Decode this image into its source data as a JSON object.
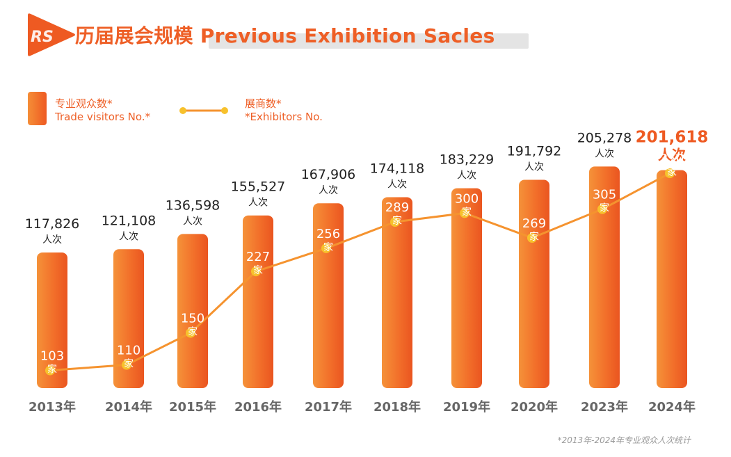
{
  "header": {
    "logo_text": "RS",
    "title": "历届展会规模 Previous Exhibition Sacles"
  },
  "legend": {
    "visitors_line1": "专业观众数*",
    "visitors_line2": "Trade visitors No.*",
    "exhibitors_line1": "展商数*",
    "exhibitors_line2": "*Exhibitors No."
  },
  "colors": {
    "accent": "#ee5a22",
    "bar_light": "#f58e37",
    "bar_dark": "#ee5a22",
    "line": "#f5932f",
    "dot": "#f7c12c"
  },
  "chart_data": {
    "type": "bar",
    "categories": [
      "2013年",
      "2014年",
      "2015年",
      "2016年",
      "2017年",
      "2018年",
      "2019年",
      "2020年",
      "2023年",
      "2024年"
    ],
    "series": [
      {
        "name": "专业观众数* Trade visitors No.*",
        "type": "bar",
        "values": [
          117826,
          121108,
          136598,
          155527,
          167906,
          174118,
          183229,
          191792,
          205278,
          201618
        ],
        "labels": [
          "117,826",
          "121,108",
          "136,598",
          "155,527",
          "167,906",
          "174,118",
          "183,229",
          "191,792",
          "205,278",
          "201,618"
        ],
        "unit": "人次"
      },
      {
        "name": "展商数* *Exhibitors No.",
        "type": "line",
        "values": [
          103,
          110,
          150,
          227,
          256,
          289,
          300,
          269,
          305,
          350
        ],
        "unit": "家"
      }
    ],
    "highlight_index": 9,
    "grid": false
  },
  "footnote": "*2013年-2024年专业观众人次统计"
}
